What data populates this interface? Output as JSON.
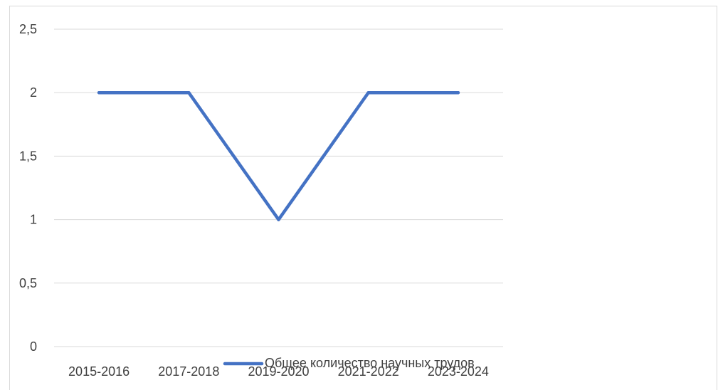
{
  "chart_data": {
    "type": "line",
    "title": "",
    "xlabel": "",
    "ylabel": "",
    "categories": [
      "2015-2016",
      "2017-2018",
      "2019-2020",
      "2021-2022",
      "2023-2024"
    ],
    "series": [
      {
        "name": "Общее количество научных трудов",
        "values": [
          2,
          2,
          1,
          2,
          2
        ],
        "color": "#4472c4"
      }
    ],
    "ylim": [
      0,
      2.5
    ],
    "yticks": [
      "0",
      "0,5",
      "1",
      "1,5",
      "2",
      "2,5"
    ],
    "grid": true,
    "gridColor": "#d9d9d9",
    "legend": "bottom"
  }
}
